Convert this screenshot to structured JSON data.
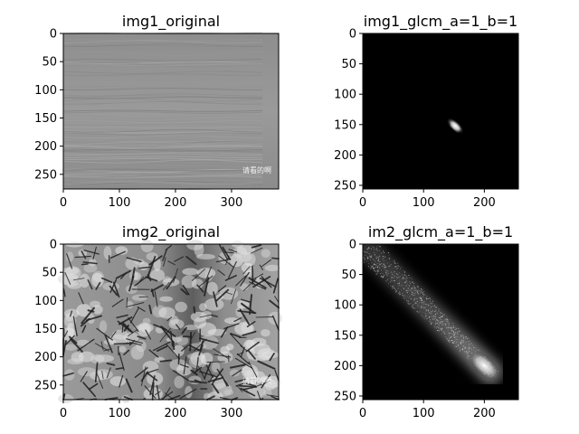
{
  "chart_data": [
    {
      "type": "heatmap",
      "title": "img1_original",
      "content": "grayscale wood-grain texture photo",
      "colormap": "gray",
      "watermark": "请看的啊",
      "xlim": [
        0,
        384
      ],
      "ylim": [
        276,
        0
      ],
      "xticks": [
        0,
        100,
        200,
        300
      ],
      "yticks": [
        0,
        50,
        100,
        150,
        200,
        250
      ],
      "grid": false
    },
    {
      "type": "heatmap",
      "title": "img1_glcm_a=1_b=1",
      "content": "gray-level co-occurrence matrix",
      "colormap": "gray",
      "xlim": [
        0,
        256
      ],
      "ylim": [
        256,
        0
      ],
      "xticks": [
        0,
        100,
        200
      ],
      "yticks": [
        0,
        50,
        100,
        150,
        200,
        250
      ],
      "grid": false,
      "peak": {
        "x": 152,
        "y": 152
      }
    },
    {
      "type": "heatmap",
      "title": "img2_original",
      "content": "grayscale cracked/crazed surface texture photo",
      "colormap": "gray",
      "watermark": "请看的啊",
      "xlim": [
        0,
        384
      ],
      "ylim": [
        276,
        0
      ],
      "xticks": [
        0,
        100,
        200,
        300
      ],
      "yticks": [
        0,
        50,
        100,
        150,
        200,
        250
      ],
      "grid": false
    },
    {
      "type": "heatmap",
      "title": "im2_glcm_a=1_b=1",
      "content": "gray-level co-occurrence matrix",
      "colormap": "gray",
      "xlim": [
        0,
        256
      ],
      "ylim": [
        256,
        0
      ],
      "xticks": [
        0,
        100,
        200
      ],
      "yticks": [
        0,
        50,
        100,
        150,
        200,
        250
      ],
      "grid": false,
      "peak": {
        "x": 200,
        "y": 200
      }
    }
  ]
}
